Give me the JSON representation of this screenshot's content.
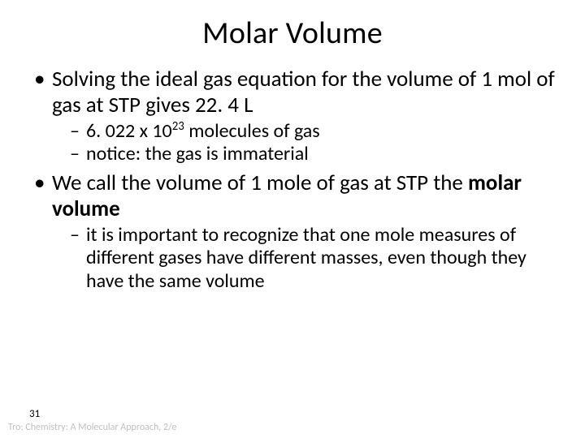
{
  "title": "Molar Volume",
  "bullets": {
    "b1": "Solving the ideal gas equation for the volume of 1 mol of gas at STP gives 22. 4 L",
    "b1_subs": {
      "s1_pre": "6. 022 x 10",
      "s1_sup": "23",
      "s1_post": " molecules of gas",
      "s2": "notice: the gas is immaterial"
    },
    "b2_pre": "We call the volume of 1 mole of gas at STP the ",
    "b2_bold": "molar volume",
    "b2_subs": {
      "s1": "it is important to recognize that one mole measures of different gases have different masses, even though they have the same volume"
    }
  },
  "page_number": "31",
  "footer": "Tro: Chemistry: A Molecular Approach, 2/e",
  "styling": {
    "background_color": "#ffffff",
    "text_color": "#000000",
    "footer_color": "#bfbfbf",
    "title_fontsize": 38,
    "l1_fontsize": 27,
    "l2_fontsize": 24,
    "font_family": "Calibri"
  }
}
